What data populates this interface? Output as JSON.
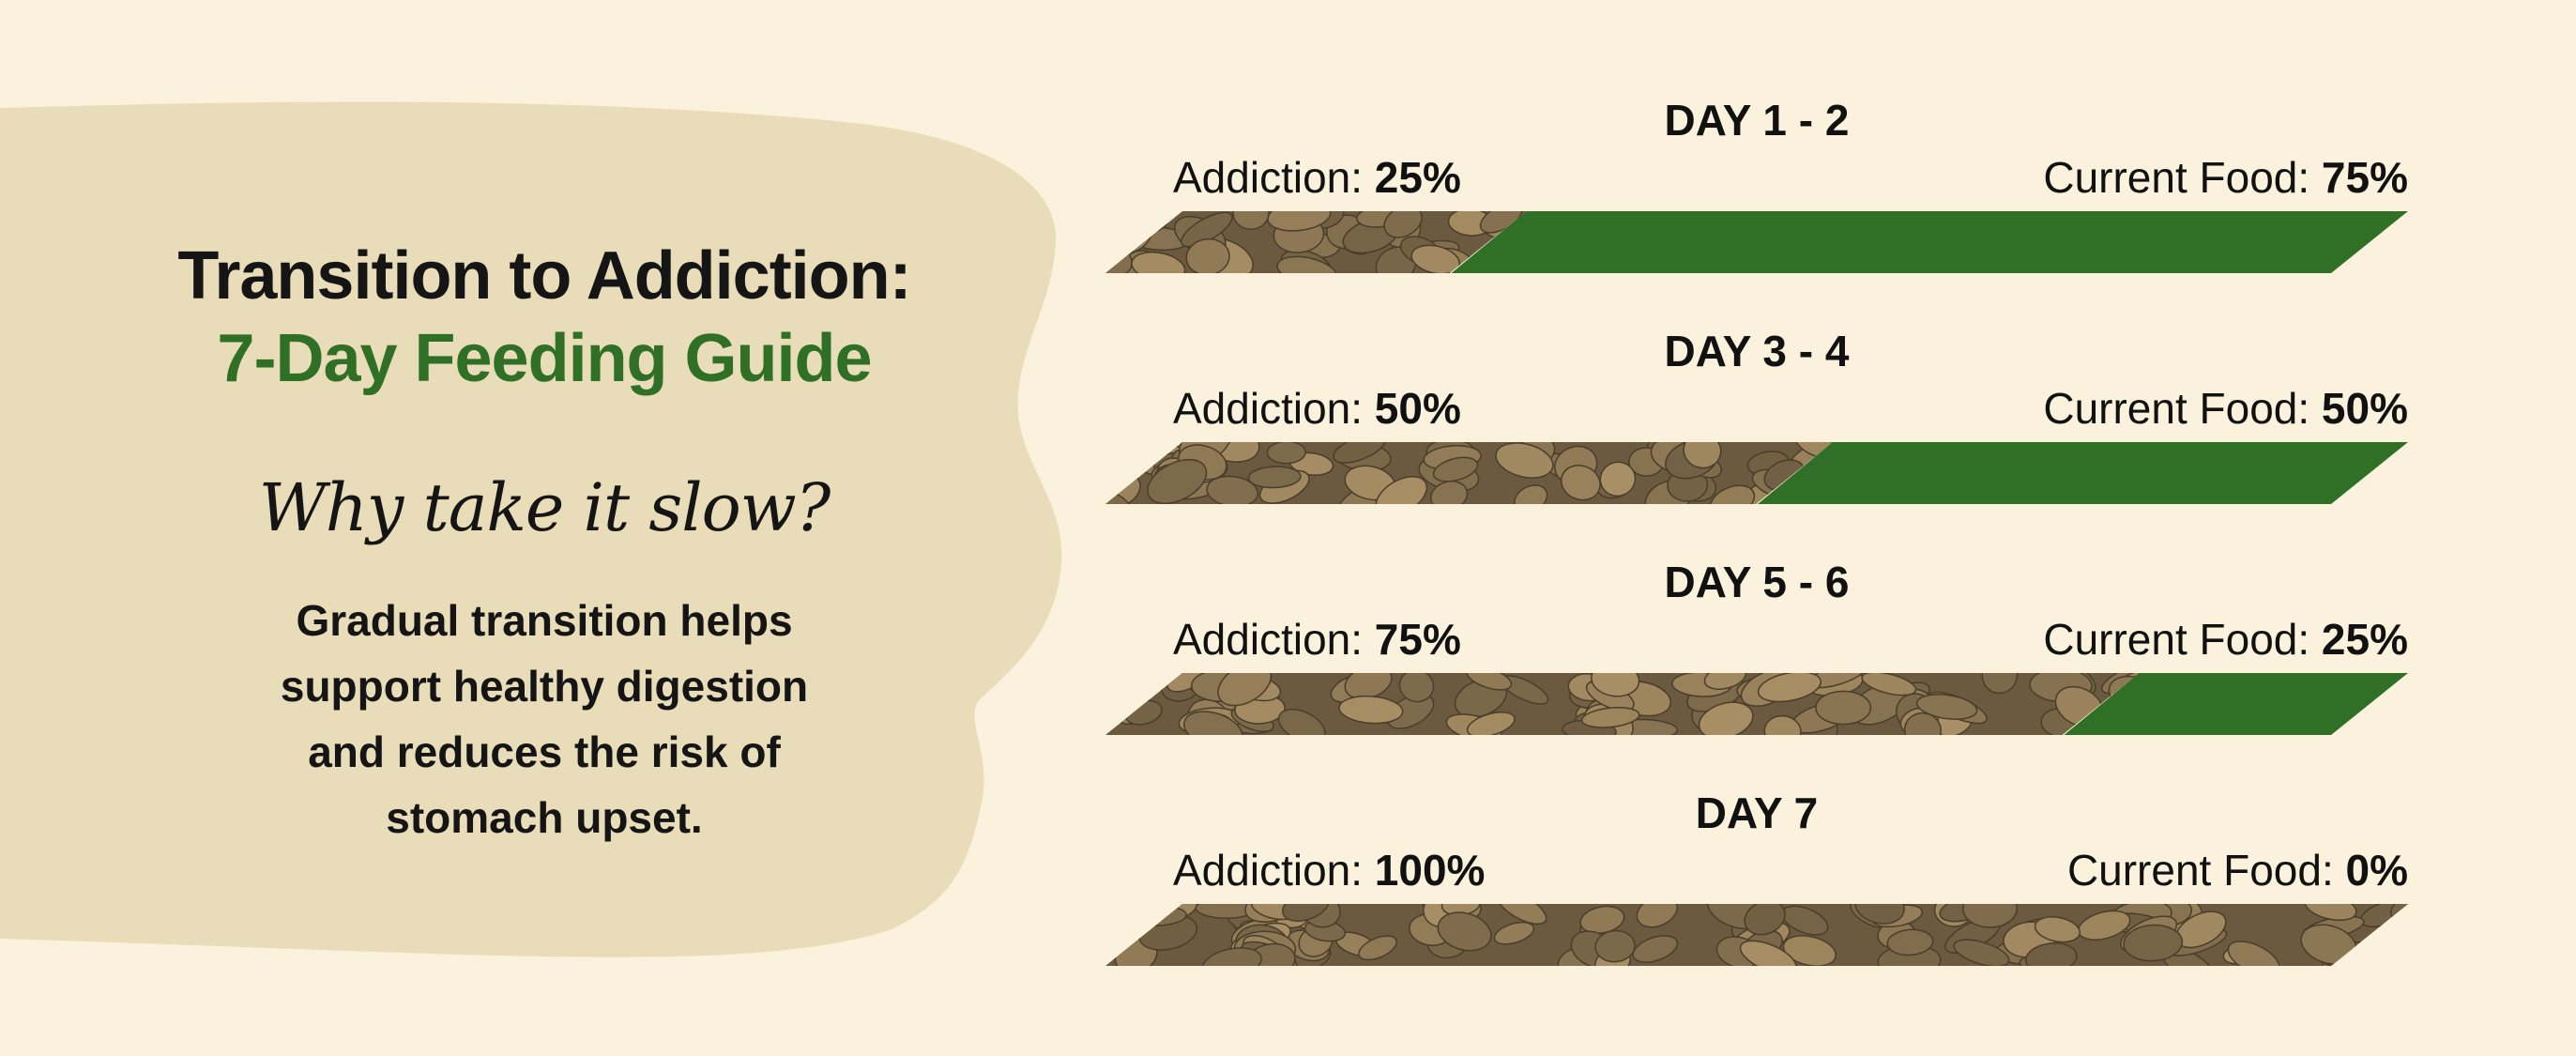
{
  "heading": {
    "line1": "Transition to Addiction:",
    "line2": "7-Day Feeding Guide"
  },
  "subheading": "Why take it slow?",
  "body": "Gradual transition helps support healthy digestion and reduces the risk of stomach upset.",
  "colors": {
    "background": "#faf2dc",
    "blob": "#e9dcb8",
    "accent_green": "#2f6f26",
    "kibble": "#8a7456"
  },
  "schedule": [
    {
      "day": "DAY 1 - 2",
      "new_label": "Addiction:",
      "new_value": "25%",
      "old_label": "Current Food:",
      "old_value": "75%",
      "new_fraction": 0.25
    },
    {
      "day": "DAY 3 - 4",
      "new_label": "Addiction:",
      "new_value": "50%",
      "old_label": "Current Food:",
      "old_value": "50%",
      "new_fraction": 0.5
    },
    {
      "day": "DAY 5 - 6",
      "new_label": "Addiction:",
      "new_value": "75%",
      "old_label": "Current Food:",
      "old_value": "25%",
      "new_fraction": 0.75
    },
    {
      "day": "DAY 7",
      "new_label": "Addiction:",
      "new_value": "100%",
      "old_label": "Current Food:",
      "old_value": "0%",
      "new_fraction": 1.0
    }
  ]
}
